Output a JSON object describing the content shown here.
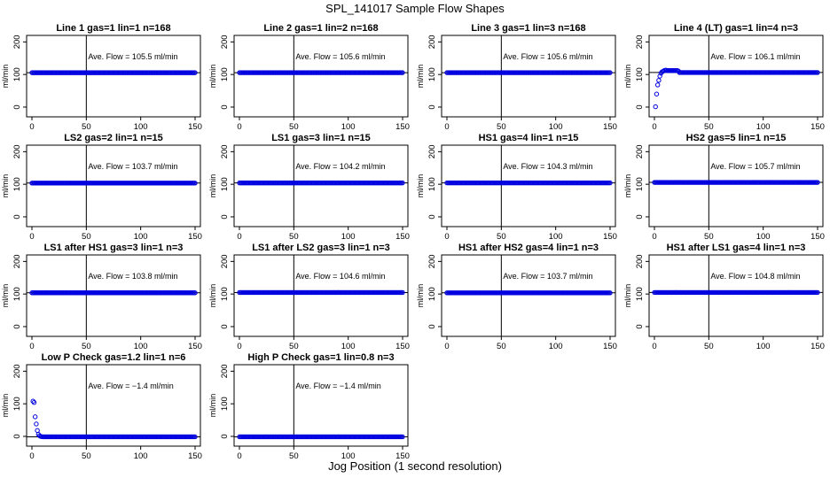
{
  "figure": {
    "title": "SPL_141017  Sample Flow Shapes",
    "xlabel": "Jog Position (1 second resolution)"
  },
  "chart_data": [
    {
      "type": "scatter",
      "title": "Line 1 gas=1 lin=1 n=168",
      "xlabel": "",
      "ylabel": "ml/min",
      "xlim": [
        0,
        150
      ],
      "ylim": [
        -30,
        220
      ],
      "xticks": [
        "0",
        "50",
        "100",
        "150"
      ],
      "yticks": [
        "0",
        "100",
        "200"
      ],
      "vline": 50,
      "hline": 105.5,
      "annotation": "Ave. Flow =  105.5  ml/min",
      "series": [
        {
          "shape": "flat",
          "value": 105.5
        }
      ]
    },
    {
      "type": "scatter",
      "title": "Line 2 gas=1 lin=2 n=168",
      "xlabel": "",
      "ylabel": "ml/min",
      "xlim": [
        0,
        150
      ],
      "ylim": [
        -30,
        220
      ],
      "xticks": [
        "0",
        "50",
        "100",
        "150"
      ],
      "yticks": [
        "0",
        "100",
        "200"
      ],
      "vline": 50,
      "hline": 105.6,
      "annotation": "Ave. Flow =  105.6  ml/min",
      "series": [
        {
          "shape": "flat",
          "value": 105.6
        }
      ]
    },
    {
      "type": "scatter",
      "title": "Line 3 gas=1 lin=3 n=168",
      "xlabel": "",
      "ylabel": "ml/min",
      "xlim": [
        0,
        150
      ],
      "ylim": [
        -30,
        220
      ],
      "xticks": [
        "0",
        "50",
        "100",
        "150"
      ],
      "yticks": [
        "0",
        "100",
        "200"
      ],
      "vline": 50,
      "hline": 105.6,
      "annotation": "Ave. Flow =  105.6  ml/min",
      "series": [
        {
          "shape": "flat",
          "value": 105.6
        }
      ]
    },
    {
      "type": "scatter",
      "title": "Line 4 (LT) gas=1 lin=4 n=3",
      "xlabel": "",
      "ylabel": "ml/min",
      "xlim": [
        0,
        150
      ],
      "ylim": [
        -30,
        220
      ],
      "xticks": [
        "0",
        "50",
        "100",
        "150"
      ],
      "yticks": [
        "0",
        "100",
        "200"
      ],
      "vline": 50,
      "hline": 106.1,
      "annotation": "Ave. Flow =  106.1  ml/min",
      "series": [
        {
          "shape": "rise",
          "value": 106.1
        }
      ]
    },
    {
      "type": "scatter",
      "title": "LS2 gas=2 lin=1 n=15",
      "xlabel": "",
      "ylabel": "ml/min",
      "xlim": [
        0,
        150
      ],
      "ylim": [
        -30,
        220
      ],
      "xticks": [
        "0",
        "50",
        "100",
        "150"
      ],
      "yticks": [
        "0",
        "100",
        "200"
      ],
      "vline": 50,
      "hline": 103.7,
      "annotation": "Ave. Flow =  103.7  ml/min",
      "series": [
        {
          "shape": "flat",
          "value": 103.7
        }
      ]
    },
    {
      "type": "scatter",
      "title": "LS1 gas=3 lin=1 n=15",
      "xlabel": "",
      "ylabel": "ml/min",
      "xlim": [
        0,
        150
      ],
      "ylim": [
        -30,
        220
      ],
      "xticks": [
        "0",
        "50",
        "100",
        "150"
      ],
      "yticks": [
        "0",
        "100",
        "200"
      ],
      "vline": 50,
      "hline": 104.2,
      "annotation": "Ave. Flow =  104.2  ml/min",
      "series": [
        {
          "shape": "flat",
          "value": 104.2
        }
      ]
    },
    {
      "type": "scatter",
      "title": "HS1 gas=4 lin=1 n=15",
      "xlabel": "",
      "ylabel": "ml/min",
      "xlim": [
        0,
        150
      ],
      "ylim": [
        -30,
        220
      ],
      "xticks": [
        "0",
        "50",
        "100",
        "150"
      ],
      "yticks": [
        "0",
        "100",
        "200"
      ],
      "vline": 50,
      "hline": 104.3,
      "annotation": "Ave. Flow =  104.3  ml/min",
      "series": [
        {
          "shape": "flat",
          "value": 104.3
        }
      ]
    },
    {
      "type": "scatter",
      "title": "HS2 gas=5 lin=1 n=15",
      "xlabel": "",
      "ylabel": "ml/min",
      "xlim": [
        0,
        150
      ],
      "ylim": [
        -30,
        220
      ],
      "xticks": [
        "0",
        "50",
        "100",
        "150"
      ],
      "yticks": [
        "0",
        "100",
        "200"
      ],
      "vline": 50,
      "hline": 105.7,
      "annotation": "Ave. Flow =  105.7  ml/min",
      "series": [
        {
          "shape": "flat",
          "value": 105.7
        }
      ]
    },
    {
      "type": "scatter",
      "title": "LS1 after HS1 gas=3 lin=1 n=3",
      "xlabel": "",
      "ylabel": "ml/min",
      "xlim": [
        0,
        150
      ],
      "ylim": [
        -30,
        220
      ],
      "xticks": [
        "0",
        "50",
        "100",
        "150"
      ],
      "yticks": [
        "0",
        "100",
        "200"
      ],
      "vline": 50,
      "hline": 103.8,
      "annotation": "Ave. Flow =  103.8  ml/min",
      "series": [
        {
          "shape": "flat",
          "value": 103.8
        }
      ]
    },
    {
      "type": "scatter",
      "title": "LS1 after LS2 gas=3 lin=1 n=3",
      "xlabel": "",
      "ylabel": "ml/min",
      "xlim": [
        0,
        150
      ],
      "ylim": [
        -30,
        220
      ],
      "xticks": [
        "0",
        "50",
        "100",
        "150"
      ],
      "yticks": [
        "0",
        "100",
        "200"
      ],
      "vline": 50,
      "hline": 104.6,
      "annotation": "Ave. Flow =  104.6  ml/min",
      "series": [
        {
          "shape": "flat",
          "value": 104.6
        }
      ]
    },
    {
      "type": "scatter",
      "title": "HS1 after HS2 gas=4 lin=1 n=3",
      "xlabel": "",
      "ylabel": "ml/min",
      "xlim": [
        0,
        150
      ],
      "ylim": [
        -30,
        220
      ],
      "xticks": [
        "0",
        "50",
        "100",
        "150"
      ],
      "yticks": [
        "0",
        "100",
        "200"
      ],
      "vline": 50,
      "hline": 103.7,
      "annotation": "Ave. Flow =  103.7  ml/min",
      "series": [
        {
          "shape": "flat",
          "value": 103.7
        }
      ]
    },
    {
      "type": "scatter",
      "title": "HS1 after LS1 gas=4 lin=1 n=3",
      "xlabel": "",
      "ylabel": "ml/min",
      "xlim": [
        0,
        150
      ],
      "ylim": [
        -30,
        220
      ],
      "xticks": [
        "0",
        "50",
        "100",
        "150"
      ],
      "yticks": [
        "0",
        "100",
        "200"
      ],
      "vline": 50,
      "hline": 104.8,
      "annotation": "Ave. Flow =  104.8  ml/min",
      "series": [
        {
          "shape": "flat",
          "value": 104.8
        }
      ]
    },
    {
      "type": "scatter",
      "title": "Low P Check gas=1.2 lin=1 n=6",
      "xlabel": "",
      "ylabel": "ml/min",
      "xlim": [
        0,
        150
      ],
      "ylim": [
        -30,
        220
      ],
      "xticks": [
        "0",
        "50",
        "100",
        "150"
      ],
      "yticks": [
        "0",
        "100",
        "200"
      ],
      "vline": 50,
      "hline": -1.4,
      "annotation": "Ave. Flow =  −1.4  ml/min",
      "series": [
        {
          "shape": "decay",
          "value": -1.4
        }
      ]
    },
    {
      "type": "scatter",
      "title": "High P Check gas=1 lin=0.8 n=3",
      "xlabel": "",
      "ylabel": "ml/min",
      "xlim": [
        0,
        150
      ],
      "ylim": [
        -30,
        220
      ],
      "xticks": [
        "0",
        "50",
        "100",
        "150"
      ],
      "yticks": [
        "0",
        "100",
        "200"
      ],
      "vline": 50,
      "hline": -1.4,
      "annotation": "Ave. Flow =  −1.4  ml/min",
      "series": [
        {
          "shape": "flat",
          "value": -1.4
        }
      ]
    }
  ],
  "colors": {
    "points": "#0000e0",
    "lines": "#000000"
  }
}
